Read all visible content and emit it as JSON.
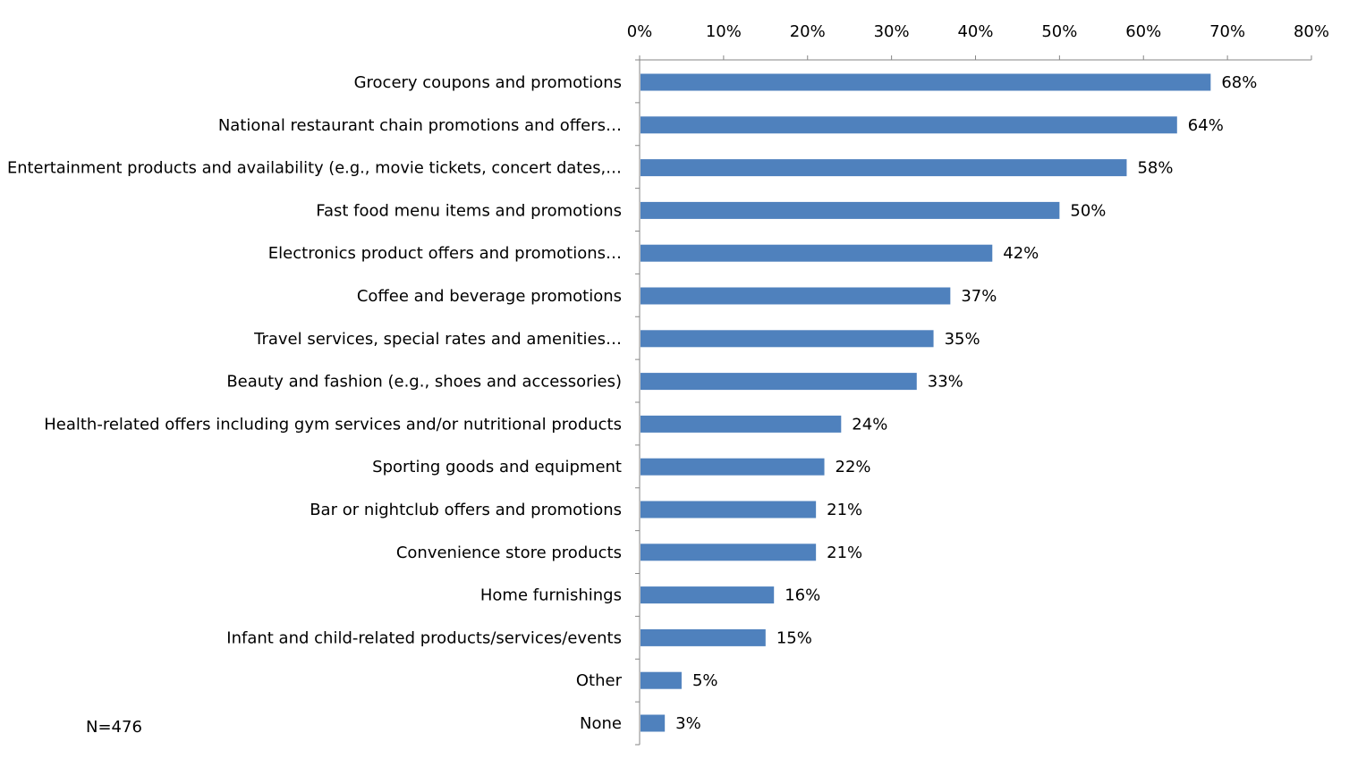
{
  "chart_data": {
    "type": "bar",
    "orientation": "horizontal",
    "categories": [
      "Grocery coupons and promotions",
      "National restaurant chain promotions and offers…",
      "Entertainment products and availability (e.g., movie tickets, concert dates,…",
      "Fast food menu items and promotions",
      "Electronics product offers and promotions…",
      "Coffee and beverage promotions",
      "Travel services, special rates and amenities…",
      "Beauty and fashion (e.g., shoes and accessories)",
      "Health-related offers including gym services and/or nutritional products",
      "Sporting goods and equipment",
      "Bar or nightclub offers and promotions",
      "Convenience store products",
      "Home furnishings",
      "Infant and child-related products/services/events",
      "Other",
      "None"
    ],
    "values": [
      68,
      64,
      58,
      50,
      42,
      37,
      35,
      33,
      24,
      22,
      21,
      21,
      16,
      15,
      5,
      3
    ],
    "value_labels": [
      "68%",
      "64%",
      "58%",
      "50%",
      "42%",
      "37%",
      "35%",
      "33%",
      "24%",
      "22%",
      "21%",
      "21%",
      "16%",
      "15%",
      "5%",
      "3%"
    ],
    "xlim": [
      0,
      80
    ],
    "x_ticks": [
      0,
      10,
      20,
      30,
      40,
      50,
      60,
      70,
      80
    ],
    "x_tick_labels": [
      "0%",
      "10%",
      "20%",
      "30%",
      "40%",
      "50%",
      "60%",
      "70%",
      "80%"
    ],
    "x_axis_position": "top",
    "bar_color": "#4F81BD",
    "grid": false,
    "legend": "none",
    "title": "",
    "xlabel": "",
    "ylabel": ""
  },
  "note": "N=476"
}
